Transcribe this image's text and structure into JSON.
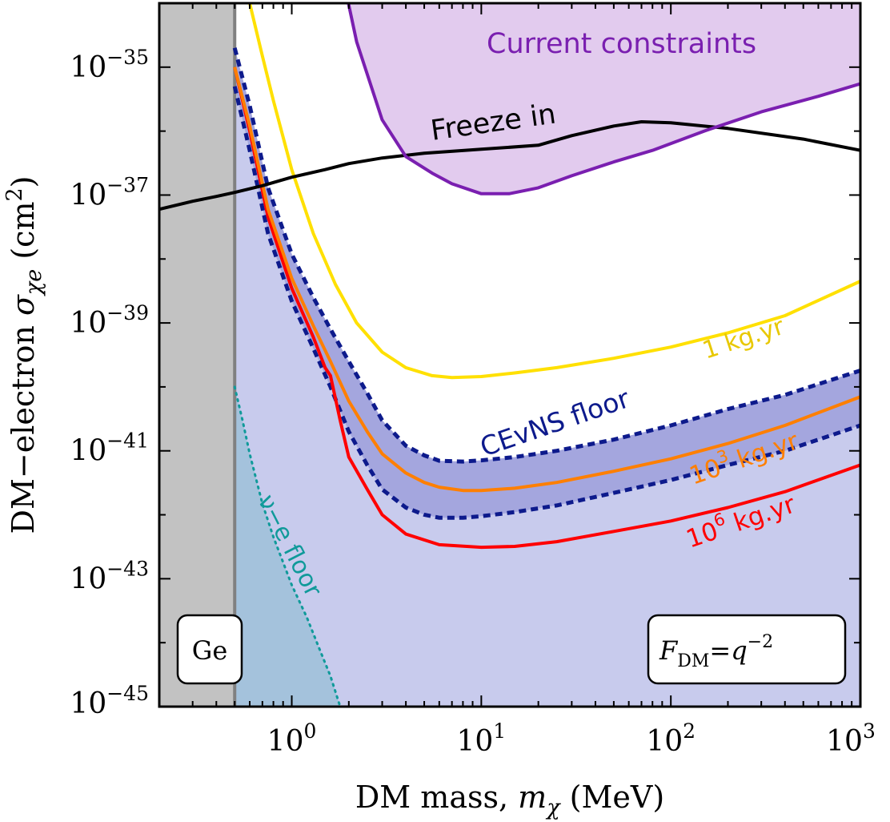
{
  "chart_data": {
    "type": "line",
    "xscale": "log",
    "yscale": "log",
    "xlim": [
      0.2,
      1000
    ],
    "ylim": [
      1e-45,
      1e-34
    ],
    "x_ticks": [
      1,
      10,
      100,
      1000
    ],
    "y_ticks": [
      1e-35,
      1e-37,
      1e-39,
      1e-41,
      1e-43,
      1e-45
    ],
    "x_tick_labels": [
      {
        "base": "10",
        "exp": "0"
      },
      {
        "base": "10",
        "exp": "1"
      },
      {
        "base": "10",
        "exp": "2"
      },
      {
        "base": "10",
        "exp": "3"
      }
    ],
    "y_tick_labels": [
      {
        "base": "10",
        "exp": "−35"
      },
      {
        "base": "10",
        "exp": "−37"
      },
      {
        "base": "10",
        "exp": "−39"
      },
      {
        "base": "10",
        "exp": "−41"
      },
      {
        "base": "10",
        "exp": "−43"
      },
      {
        "base": "10",
        "exp": "−45"
      }
    ],
    "xlabel": {
      "pre": "DM mass, ",
      "sym": "m",
      "sub": "χ",
      "post": " (MeV)"
    },
    "ylabel": {
      "pre": "DM−electron ",
      "sym": "σ",
      "sub": "χe",
      "post": " (cm",
      "sup": "2",
      "end": ")"
    },
    "ge_threshold_mev": 0.5,
    "boxes": {
      "ge": "Ge",
      "form_factor": {
        "sym": "F",
        "sub": "DM",
        "eq": "=",
        "q": "q",
        "exp": "−2"
      }
    },
    "colors": {
      "constraints_fill": "#e2cbee",
      "constraints_line": "#7a1fb0",
      "freeze_in": "#000000",
      "one_kgyr": "#ffe000",
      "cevns_band": "#a4a6de",
      "cevns_line": "#0d1a8c",
      "floor_region": "#c8cbed",
      "thousand_kgyr": "#ff7f00",
      "million_kgyr": "#ff0000",
      "nu_e_region": "#a4c2dc",
      "nu_e_line": "#109a9a",
      "ge_region": "#c0c0c0",
      "ge_line": "#808080"
    },
    "labels": {
      "current_constraints": "Current constraints",
      "freeze_in": "Freeze in",
      "one_kgyr": "1 kg.yr",
      "cevns_floor": "CEvNS floor",
      "thousand": {
        "base": "10",
        "exp": "3",
        "unit": " kg.yr"
      },
      "million": {
        "base": "10",
        "exp": "6",
        "unit": " kg.yr"
      },
      "nu_e_floor": "ν−e floor"
    },
    "series": [
      {
        "name": "Current constraints",
        "x": [
          1.8,
          2.2,
          3,
          4,
          5.5,
          7,
          10,
          14,
          20,
          30,
          50,
          80,
          150,
          300,
          600,
          1000
        ],
        "y": [
          4e-34,
          2.5e-35,
          1.5e-36,
          4e-37,
          2.2e-37,
          1.5e-37,
          1.05e-37,
          1.05e-37,
          1.3e-37,
          2e-37,
          3.3e-37,
          5e-37,
          1e-36,
          2e-36,
          3.5e-36,
          5.5e-36
        ]
      },
      {
        "name": "Freeze in",
        "x": [
          0.2,
          0.3,
          0.4,
          0.5,
          0.7,
          1,
          1.5,
          2,
          3,
          5,
          10,
          20,
          30,
          50,
          70,
          100,
          200,
          500,
          1000
        ],
        "y": [
          6e-38,
          8e-38,
          9.5e-38,
          1.1e-37,
          1.4e-37,
          1.9e-37,
          2.5e-37,
          3.1e-37,
          3.8e-37,
          4.5e-37,
          5.2e-37,
          6e-37,
          8.5e-37,
          1.2e-36,
          1.4e-36,
          1.35e-36,
          1.1e-36,
          7.5e-37,
          5e-37
        ]
      },
      {
        "name": "1 kg.yr",
        "x": [
          0.6,
          0.7,
          0.8,
          1,
          1.3,
          1.7,
          2.2,
          3,
          4,
          5.5,
          7,
          10,
          15,
          25,
          50,
          100,
          200,
          400,
          1000
        ],
        "y": [
          1e-34,
          1.5e-35,
          3e-36,
          2.5e-37,
          2.5e-38,
          4e-39,
          1e-39,
          3.5e-40,
          2e-40,
          1.5e-40,
          1.4e-40,
          1.45e-40,
          1.65e-40,
          2e-40,
          2.8e-40,
          4.2e-40,
          7e-40,
          1.3e-39,
          4.5e-39
        ]
      },
      {
        "name": "CEvNS floor upper",
        "x": [
          0.5,
          0.6,
          0.75,
          1,
          1.3,
          1.6,
          2,
          2.5,
          3,
          4,
          5,
          6,
          8,
          10,
          15,
          25,
          50,
          100,
          200,
          400,
          1000
        ],
        "y": [
          2e-35,
          2.5e-36,
          1.3e-37,
          1.2e-38,
          2.5e-39,
          8e-40,
          2.5e-40,
          8e-41,
          3e-41,
          1.2e-41,
          8.5e-42,
          7e-42,
          6.8e-42,
          7.1e-42,
          8e-42,
          1e-41,
          1.5e-41,
          2.5e-41,
          4.5e-41,
          7.5e-41,
          1.8e-40
        ]
      },
      {
        "name": "CEvNS floor lower",
        "x": [
          0.5,
          0.6,
          0.75,
          1,
          1.3,
          1.6,
          2,
          2.5,
          3,
          4,
          5,
          6,
          8,
          10,
          15,
          25,
          50,
          100,
          200,
          400,
          1000
        ],
        "y": [
          5e-36,
          5e-37,
          2.5e-38,
          2.2e-39,
          4e-40,
          1e-40,
          2e-41,
          6e-42,
          2.5e-42,
          1.3e-42,
          1e-42,
          9e-43,
          9e-43,
          9.5e-43,
          1.1e-42,
          1.4e-42,
          2.2e-42,
          3.5e-42,
          6e-42,
          1e-41,
          2.5e-41
        ]
      },
      {
        "name": "10^3 kg.yr",
        "x": [
          0.5,
          0.6,
          0.75,
          1,
          1.3,
          1.6,
          2,
          2.5,
          3,
          4,
          5,
          6,
          8,
          10,
          15,
          25,
          50,
          100,
          200,
          400,
          1000
        ],
        "y": [
          1e-35,
          1.2e-36,
          6e-38,
          5e-39,
          9e-40,
          2.5e-40,
          6e-41,
          2e-41,
          9e-42,
          4.5e-42,
          3.2e-42,
          2.7e-42,
          2.4e-42,
          2.4e-42,
          2.6e-42,
          3.2e-42,
          4.8e-42,
          7.5e-42,
          1.3e-41,
          2.5e-41,
          7e-41
        ]
      },
      {
        "name": "10^6 kg.yr",
        "x": [
          0.5,
          0.6,
          0.75,
          1,
          1.3,
          1.5,
          1.6,
          1.8,
          2,
          2.5,
          3,
          4,
          6,
          10,
          15,
          25,
          50,
          100,
          200,
          400,
          1000
        ],
        "y": [
          1e-35,
          1e-36,
          4.5e-38,
          3.5e-39,
          6e-40,
          2e-40,
          1.5e-40,
          3e-41,
          8e-42,
          2.5e-42,
          1e-42,
          5e-43,
          3.4e-43,
          3.1e-43,
          3.2e-43,
          3.8e-43,
          5.5e-43,
          8e-43,
          1.3e-42,
          2.3e-42,
          6e-42
        ]
      },
      {
        "name": "ν−e floor",
        "x": [
          0.5,
          0.55,
          0.6,
          0.7,
          0.8,
          1,
          1.2,
          1.4,
          1.6,
          1.8
        ],
        "y": [
          1e-40,
          3e-41,
          9e-42,
          1.5e-42,
          4.5e-43,
          8e-44,
          2.5e-44,
          8e-45,
          3e-45,
          1e-45
        ]
      }
    ]
  }
}
